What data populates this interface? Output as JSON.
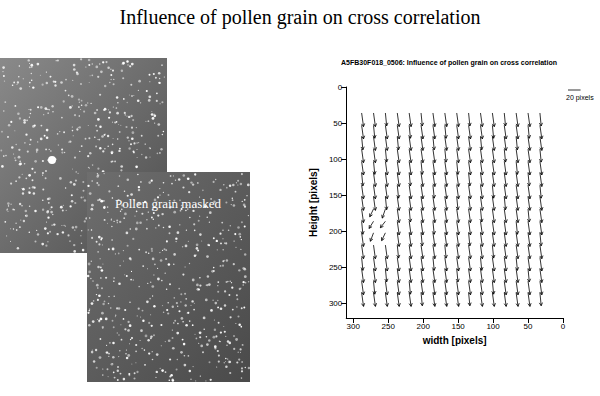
{
  "title": "Influence of pollen grain on cross correlation",
  "image_label": "Pollen grain masked",
  "chart_data": {
    "type": "vector",
    "title": "A5FB30F018_0506: Influence of pollen grain on cross correlation",
    "x_label": "width [pixels]",
    "y_label": "Height [pixels]",
    "xlim": [
      310,
      0
    ],
    "xticks": [
      300,
      250,
      200,
      150,
      100,
      50,
      0
    ],
    "ylim": [
      320,
      0
    ],
    "yticks": [
      0,
      50,
      100,
      150,
      200,
      250,
      300
    ],
    "grid": false,
    "color": "#000000",
    "reference_vector": {
      "value": 20,
      "label": "20 pixels"
    },
    "x": [
      288,
      271,
      254,
      237,
      220,
      203,
      186,
      169,
      152,
      135,
      118,
      101,
      84,
      67,
      50,
      33
    ],
    "y": [
      36,
      53,
      69,
      86,
      103,
      119,
      136,
      152,
      169,
      186,
      202,
      219,
      236,
      252,
      269,
      285
    ],
    "u": [
      [
        -3,
        -3,
        -2,
        -3,
        -3,
        -2,
        -3,
        -3,
        -3,
        -2,
        -3,
        -3,
        -2,
        -3,
        -3,
        -2
      ],
      [
        -3,
        -2,
        -3,
        -3,
        -2,
        -3,
        -3,
        -2,
        -3,
        -3,
        -3,
        -2,
        -3,
        -3,
        -2,
        -3
      ],
      [
        -2,
        -3,
        -3,
        -2,
        -3,
        -3,
        -2,
        -3,
        -3,
        -3,
        -2,
        -3,
        -3,
        -2,
        -3,
        -3
      ],
      [
        -3,
        -3,
        -2,
        -3,
        -3,
        -3,
        -3,
        -2,
        -3,
        -3,
        -3,
        -3,
        -2,
        -3,
        -3,
        -2
      ],
      [
        -3,
        -2,
        -3,
        -3,
        -3,
        -2,
        -3,
        -3,
        -2,
        -3,
        -3,
        -3,
        -3,
        -2,
        -3,
        -3
      ],
      [
        -2,
        -3,
        -3,
        -3,
        -2,
        -3,
        -3,
        -3,
        -3,
        -2,
        -3,
        -3,
        -3,
        -3,
        -2,
        -3
      ],
      [
        -3,
        -3,
        -3,
        -2,
        -3,
        -3,
        -2,
        -3,
        -3,
        -3,
        -3,
        -2,
        -3,
        -3,
        -3,
        -2
      ],
      [
        -3,
        -3,
        -2,
        -3,
        -3,
        -3,
        -3,
        -3,
        -2,
        -3,
        -3,
        -3,
        -2,
        -3,
        -3,
        -3
      ],
      [
        -3,
        6,
        5,
        -3,
        -2,
        -3,
        -3,
        -3,
        -3,
        -3,
        -2,
        -3,
        -3,
        -3,
        -2,
        -3
      ],
      [
        -2,
        7,
        8,
        -3,
        -3,
        -3,
        -2,
        -3,
        -3,
        -3,
        -3,
        -3,
        -3,
        -2,
        -3,
        -3
      ],
      [
        -3,
        5,
        6,
        -3,
        -3,
        -2,
        -3,
        -3,
        -3,
        -2,
        -3,
        -3,
        -3,
        -3,
        -3,
        -2
      ],
      [
        -3,
        -3,
        -3,
        -2,
        -3,
        -3,
        -3,
        -2,
        -3,
        -3,
        -3,
        -2,
        -3,
        -3,
        -3,
        -3
      ],
      [
        -2,
        -3,
        -3,
        -3,
        -3,
        -3,
        -2,
        -3,
        -3,
        -3,
        -2,
        -3,
        -3,
        -2,
        -3,
        -3
      ],
      [
        -3,
        -3,
        -2,
        -3,
        -3,
        -3,
        -3,
        -3,
        -2,
        -3,
        -3,
        -3,
        -3,
        -3,
        -2,
        -3
      ],
      [
        -3,
        -2,
        -3,
        -3,
        -2,
        -3,
        -3,
        -3,
        -3,
        -3,
        -3,
        -2,
        -3,
        -3,
        -3,
        -3
      ],
      [
        -3,
        -3,
        -3,
        -3,
        -3,
        -2,
        -3,
        -3,
        -3,
        -2,
        -3,
        -3,
        -3,
        -3,
        -3,
        -2
      ]
    ],
    "v": [
      [
        21,
        21,
        20,
        21,
        21,
        20,
        21,
        21,
        21,
        20,
        21,
        21,
        20,
        21,
        21,
        20
      ],
      [
        21,
        20,
        21,
        21,
        20,
        21,
        21,
        20,
        21,
        21,
        21,
        20,
        21,
        21,
        20,
        21
      ],
      [
        20,
        21,
        21,
        20,
        21,
        21,
        20,
        21,
        21,
        21,
        20,
        21,
        21,
        20,
        21,
        21
      ],
      [
        21,
        21,
        20,
        21,
        21,
        21,
        21,
        20,
        21,
        21,
        21,
        21,
        20,
        21,
        21,
        20
      ],
      [
        21,
        20,
        21,
        21,
        21,
        20,
        21,
        21,
        20,
        21,
        21,
        21,
        21,
        20,
        21,
        21
      ],
      [
        20,
        21,
        21,
        21,
        20,
        21,
        21,
        21,
        21,
        20,
        21,
        21,
        21,
        21,
        20,
        21
      ],
      [
        21,
        21,
        21,
        20,
        21,
        21,
        20,
        21,
        21,
        21,
        21,
        20,
        21,
        21,
        21,
        20
      ],
      [
        21,
        21,
        20,
        21,
        21,
        21,
        21,
        21,
        20,
        21,
        21,
        21,
        20,
        21,
        21,
        21
      ],
      [
        21,
        12,
        14,
        21,
        20,
        21,
        21,
        21,
        21,
        21,
        20,
        21,
        21,
        21,
        20,
        21
      ],
      [
        20,
        11,
        10,
        21,
        21,
        21,
        20,
        21,
        21,
        21,
        21,
        21,
        21,
        20,
        21,
        21
      ],
      [
        21,
        13,
        12,
        21,
        21,
        20,
        21,
        21,
        21,
        20,
        21,
        21,
        21,
        21,
        21,
        20
      ],
      [
        21,
        21,
        21,
        20,
        21,
        21,
        21,
        20,
        21,
        21,
        21,
        20,
        21,
        21,
        21,
        21
      ],
      [
        20,
        21,
        21,
        21,
        21,
        21,
        20,
        21,
        21,
        21,
        20,
        21,
        21,
        20,
        21,
        21
      ],
      [
        21,
        21,
        20,
        21,
        21,
        21,
        21,
        21,
        20,
        21,
        21,
        21,
        21,
        21,
        20,
        21
      ],
      [
        21,
        20,
        21,
        21,
        20,
        21,
        21,
        21,
        21,
        21,
        21,
        20,
        21,
        21,
        21,
        21
      ],
      [
        21,
        21,
        21,
        21,
        21,
        20,
        21,
        21,
        21,
        20,
        21,
        21,
        21,
        21,
        21,
        20
      ]
    ]
  }
}
